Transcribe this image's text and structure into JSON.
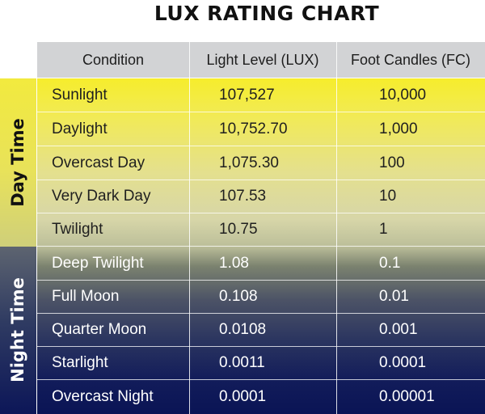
{
  "title": "LUX RATING CHART",
  "side_labels": {
    "day": "Day Time",
    "night": "Night Time"
  },
  "headers": [
    "Condition",
    "Light Level (LUX)",
    "Foot Candles (FC)"
  ],
  "rows": [
    {
      "condition": "Sunlight",
      "lux": "107,527",
      "fc": "10,000"
    },
    {
      "condition": "Daylight",
      "lux": "10,752.70",
      "fc": "1,000"
    },
    {
      "condition": "Overcast Day",
      "lux": "1,075.30",
      "fc": "100"
    },
    {
      "condition": "Very Dark Day",
      "lux": "107.53",
      "fc": "10"
    },
    {
      "condition": "Twilight",
      "lux": "10.75",
      "fc": "1"
    },
    {
      "condition": "Deep Twilight",
      "lux": "1.08",
      "fc": "0.1"
    },
    {
      "condition": "Full Moon",
      "lux": "0.108",
      "fc": "0.01"
    },
    {
      "condition": "Quarter Moon",
      "lux": "0.0108",
      "fc": "0.001"
    },
    {
      "condition": "Starlight",
      "lux": "0.0011",
      "fc": "0.0001"
    },
    {
      "condition": "Overcast Night",
      "lux": "0.0001",
      "fc": "0.00001"
    }
  ]
}
